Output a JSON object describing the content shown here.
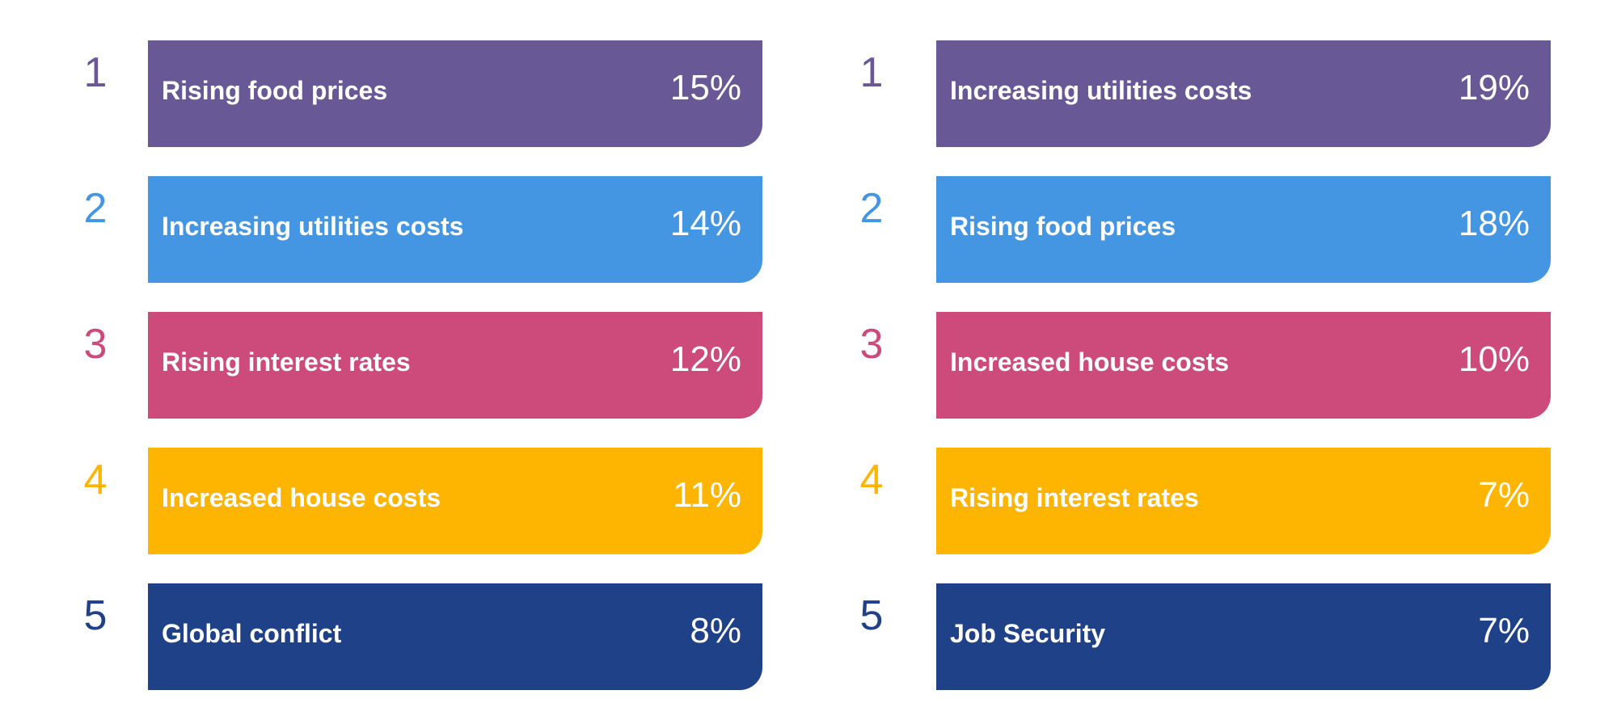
{
  "palette": [
    "#685895",
    "#4596e2",
    "#cc4b7a",
    "#feb501",
    "#1f4187"
  ],
  "chart_data": [
    {
      "type": "table",
      "rows": [
        {
          "rank": "1",
          "label": "Rising food prices",
          "value": "15%"
        },
        {
          "rank": "2",
          "label": "Increasing utilities costs",
          "value": "14%"
        },
        {
          "rank": "3",
          "label": "Rising interest rates",
          "value": "12%"
        },
        {
          "rank": "4",
          "label": "Increased house costs",
          "value": "11%"
        },
        {
          "rank": "5",
          "label": "Global conflict",
          "value": "8%"
        }
      ]
    },
    {
      "type": "table",
      "rows": [
        {
          "rank": "1",
          "label": "Increasing utilities costs",
          "value": "19%"
        },
        {
          "rank": "2",
          "label": "Rising food prices",
          "value": "18%"
        },
        {
          "rank": "3",
          "label": "Increased house costs",
          "value": "10%"
        },
        {
          "rank": "4",
          "label": "Rising interest rates",
          "value": "7%"
        },
        {
          "rank": "5",
          "label": "Job Security",
          "value": "7%"
        }
      ]
    }
  ]
}
